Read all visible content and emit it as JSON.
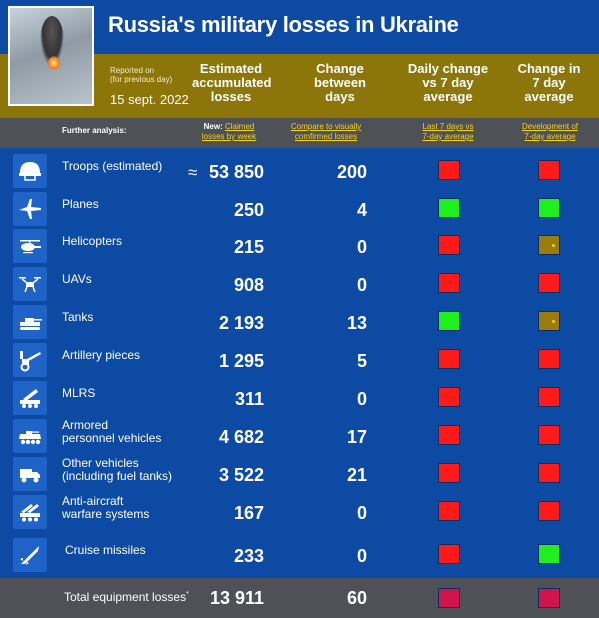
{
  "title": "Russia's military losses in Ukraine",
  "reported": {
    "line1": "Reported on",
    "line2": "(for previous day)",
    "date": "15 sept. 2022"
  },
  "columns": {
    "estimated": [
      "Estimated",
      "accumulated",
      "losses"
    ],
    "change": [
      "Change",
      "between",
      "days"
    ],
    "daily": [
      "Daily change",
      "vs 7 day",
      "average"
    ],
    "seven": [
      "Change in",
      "7 day",
      "average"
    ]
  },
  "analysis": {
    "label": "Further analysis:",
    "new_prefix": "New:",
    "claimed": [
      "Claimed",
      "losses by week"
    ],
    "compare": [
      "Compare to visually",
      "comfirmed losses"
    ],
    "last7": [
      "Last 7 days vs",
      "7-day average"
    ],
    "development": [
      "Development of",
      "7-day average"
    ]
  },
  "colors": {
    "red": "#ff1a1a",
    "green": "#1ef01e",
    "gold": "#9b7b0a",
    "crimson": "#d2144e"
  },
  "rows": [
    {
      "label": "Troops (estimated)",
      "approx": "≈",
      "value": "53 850",
      "change": "200",
      "daily": "red",
      "seven": "red",
      "icon": "helmet-icon"
    },
    {
      "label": "Planes",
      "value": "250",
      "change": "4",
      "daily": "green",
      "seven": "green",
      "icon": "plane-icon"
    },
    {
      "label": "Helicopters",
      "value": "215",
      "change": "0",
      "daily": "red",
      "seven": "gold",
      "icon": "helicopter-icon"
    },
    {
      "label": "UAVs",
      "value": "908",
      "change": "0",
      "daily": "red",
      "seven": "red",
      "icon": "drone-icon"
    },
    {
      "label": "Tanks",
      "value": "2 193",
      "change": "13",
      "daily": "green",
      "seven": "gold",
      "icon": "tank-icon"
    },
    {
      "label": "Artillery pieces",
      "value": "1 295",
      "change": "5",
      "daily": "red",
      "seven": "red",
      "icon": "artillery-icon"
    },
    {
      "label": "MLRS",
      "value": "311",
      "change": "0",
      "daily": "red",
      "seven": "red",
      "icon": "mlrs-icon"
    },
    {
      "label": "Armored",
      "label2": "personnel vehicles",
      "value": "4 682",
      "change": "17",
      "daily": "red",
      "seven": "red",
      "icon": "apc-icon"
    },
    {
      "label": "Other vehicles",
      "label2": "(including fuel tanks)",
      "value": "3 522",
      "change": "21",
      "daily": "red",
      "seven": "red",
      "icon": "truck-icon"
    },
    {
      "label": "Anti-aircraft",
      "label2": "warfare systems",
      "value": "167",
      "change": "0",
      "daily": "red",
      "seven": "red",
      "icon": "anti-aircraft-icon"
    },
    {
      "label": "Cruise missiles",
      "value": "233",
      "change": "0",
      "daily": "red",
      "seven": "green",
      "icon": "missile-icon"
    }
  ],
  "total": {
    "label": "Total equipment losses",
    "mark": "*",
    "value": "13 911",
    "change": "60",
    "daily": "crimson",
    "seven": "crimson"
  }
}
